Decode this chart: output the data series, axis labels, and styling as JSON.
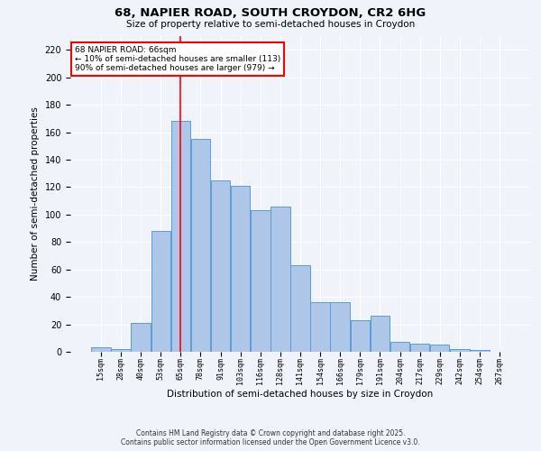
{
  "title1": "68, NAPIER ROAD, SOUTH CROYDON, CR2 6HG",
  "title2": "Size of property relative to semi-detached houses in Croydon",
  "xlabel": "Distribution of semi-detached houses by size in Croydon",
  "ylabel": "Number of semi-detached properties",
  "categories": [
    "15sqm",
    "28sqm",
    "40sqm",
    "53sqm",
    "65sqm",
    "78sqm",
    "91sqm",
    "103sqm",
    "116sqm",
    "128sqm",
    "141sqm",
    "154sqm",
    "166sqm",
    "179sqm",
    "191sqm",
    "204sqm",
    "217sqm",
    "229sqm",
    "242sqm",
    "254sqm",
    "267sqm"
  ],
  "values": [
    3,
    2,
    21,
    88,
    168,
    155,
    125,
    121,
    103,
    106,
    63,
    36,
    36,
    23,
    26,
    7,
    6,
    5,
    2,
    1,
    0
  ],
  "bar_color": "#aec6e8",
  "bar_edge_color": "#5b9bd5",
  "vline_x": 4,
  "vline_color": "red",
  "annotation_text": "68 NAPIER ROAD: 66sqm\n← 10% of semi-detached houses are smaller (113)\n90% of semi-detached houses are larger (979) →",
  "annotation_box_color": "white",
  "annotation_box_edge_color": "red",
  "ylim": [
    0,
    230
  ],
  "yticks": [
    0,
    20,
    40,
    60,
    80,
    100,
    120,
    140,
    160,
    180,
    200,
    220
  ],
  "background_color": "#f0f4fa",
  "grid_color": "white",
  "footer": "Contains HM Land Registry data © Crown copyright and database right 2025.\nContains public sector information licensed under the Open Government Licence v3.0."
}
